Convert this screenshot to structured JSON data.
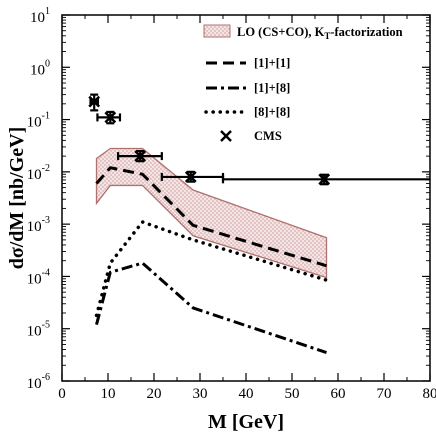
{
  "chart_data": {
    "type": "line",
    "xlabel": "M [GeV]",
    "ylabel": "dσ/dM [nb/GeV]",
    "xlim": [
      0,
      80
    ],
    "ylim_log10": [
      -6,
      1
    ],
    "yscale": "log",
    "x_ticks": [
      "0",
      "10",
      "20",
      "30",
      "40",
      "50",
      "60",
      "70",
      "80"
    ],
    "y_ticks": [
      {
        "base": "10",
        "exp": "-6"
      },
      {
        "base": "10",
        "exp": "-5"
      },
      {
        "base": "10",
        "exp": "-4"
      },
      {
        "base": "10",
        "exp": "-3"
      },
      {
        "base": "10",
        "exp": "-2"
      },
      {
        "base": "10",
        "exp": "-1"
      },
      {
        "base": "10",
        "exp": "0"
      },
      {
        "base": "10",
        "exp": "1"
      }
    ],
    "legend": {
      "placement": "top-right",
      "band_label_main": "LO (CS+CO), K",
      "band_label_sub": "T",
      "band_label_tail": "-factorization",
      "entries": [
        "[1]+[1]",
        "[1]+[8]",
        "[8]+[8]",
        "CMS"
      ]
    },
    "band": {
      "name": "LO (CS+CO), KT-factorization",
      "color": "#b07070",
      "x": [
        7.5,
        10.5,
        17.5,
        28.5,
        57.5
      ],
      "upper": [
        0.018,
        0.028,
        0.028,
        0.0045,
        0.00055
      ],
      "lower": [
        0.0025,
        0.0055,
        0.0055,
        0.0006,
        9.5e-05
      ]
    },
    "series": [
      {
        "name": "[1]+[1]",
        "style": "dashed",
        "x": [
          7.5,
          10.5,
          17.5,
          28.5,
          57.5
        ],
        "values": [
          0.006,
          0.012,
          0.009,
          0.00095,
          0.00016
        ]
      },
      {
        "name": "[1]+[8]",
        "style": "dash-dot",
        "x": [
          7.5,
          10.5,
          17.5,
          28.5,
          57.5
        ],
        "values": [
          1.2e-05,
          0.00012,
          0.00018,
          2.5e-05,
          3.5e-06
        ]
      },
      {
        "name": "[8]+[8]",
        "style": "dotted",
        "x": [
          7.5,
          10.5,
          17.5,
          28.5,
          57.5
        ],
        "values": [
          1.8e-05,
          0.00018,
          0.0011,
          0.0005,
          8.5e-05
        ]
      }
    ],
    "cms_points": [
      {
        "x": 7,
        "xlo": 6.2,
        "xhi": 7.8,
        "y": 0.22,
        "ylo": 0.15,
        "yhi": 0.3
      },
      {
        "x": 10.5,
        "xlo": 7.7,
        "xhi": 12.6,
        "y": 0.11,
        "ylo": 0.085,
        "yhi": 0.14
      },
      {
        "x": 17,
        "xlo": 12.2,
        "xhi": 21.7,
        "y": 0.02,
        "ylo": 0.016,
        "yhi": 0.025
      },
      {
        "x": 28,
        "xlo": 21.7,
        "xhi": 35,
        "y": 0.008,
        "ylo": 0.0065,
        "yhi": 0.01
      },
      {
        "x": 57,
        "xlo": 35,
        "xhi": 80,
        "y": 0.0072,
        "ylo": 0.0058,
        "yhi": 0.0088
      }
    ]
  }
}
